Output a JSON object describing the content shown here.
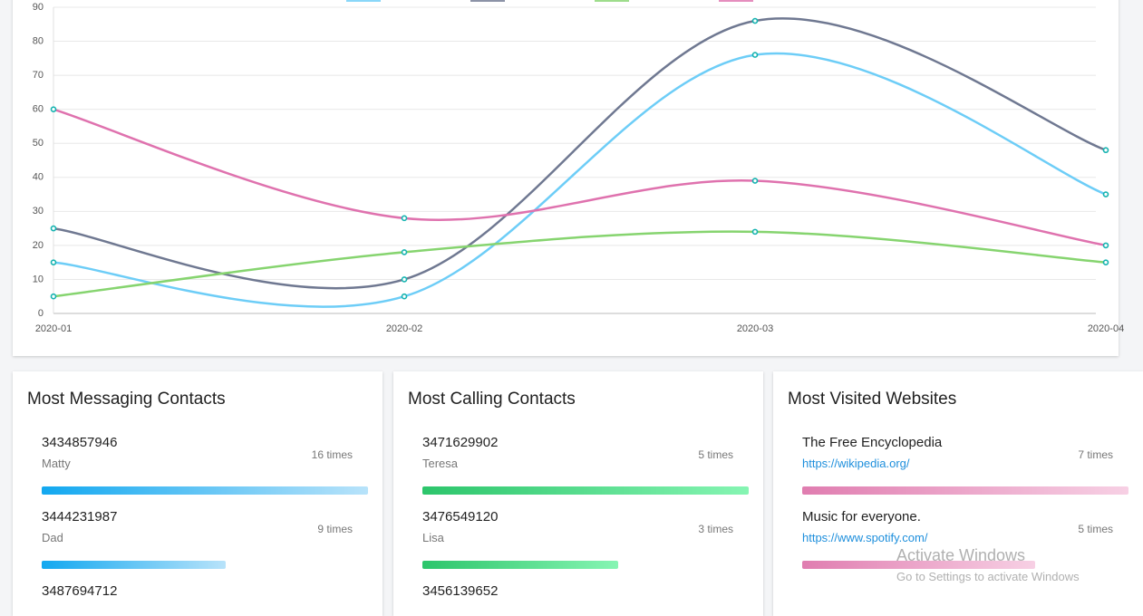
{
  "chart_data": {
    "type": "line",
    "categories": [
      "2020-01",
      "2020-02",
      "2020-03",
      "2020-04"
    ],
    "series": [
      {
        "color": "#6dcdf7",
        "values": [
          15,
          5,
          76,
          35
        ]
      },
      {
        "color": "#6f7891",
        "values": [
          25,
          10,
          86,
          48
        ]
      },
      {
        "color": "#86d46f",
        "values": [
          5,
          18,
          24,
          15
        ]
      },
      {
        "color": "#df72ae",
        "values": [
          60,
          28,
          39,
          20
        ]
      }
    ],
    "marker_color": "#15b3b0",
    "ylim": [
      0,
      90
    ],
    "yticks": [
      0,
      10,
      20,
      30,
      40,
      50,
      60,
      70,
      80,
      90
    ],
    "grid": true
  },
  "cards": [
    {
      "title": "Most Messaging Contacts",
      "colors": [
        "#12a8f0",
        "#b8e3fa"
      ],
      "link": false,
      "items": [
        {
          "primary": "3434857946",
          "secondary": "Matty",
          "count": 16,
          "count_label": "16 times"
        },
        {
          "primary": "3444231987",
          "secondary": "Dad",
          "count": 9,
          "count_label": "9 times"
        },
        {
          "primary": "3487694712"
        }
      ]
    },
    {
      "title": "Most Calling Contacts",
      "colors": [
        "#2cc56b",
        "#86f5b3"
      ],
      "link": false,
      "items": [
        {
          "primary": "3471629902",
          "secondary": "Teresa",
          "count": 5,
          "count_label": "5 times"
        },
        {
          "primary": "3476549120",
          "secondary": "Lisa",
          "count": 3,
          "count_label": "3 times"
        },
        {
          "primary": "3456139652"
        }
      ]
    },
    {
      "title": "Most Visited Websites",
      "colors": [
        "#e07db0",
        "#f7d0e4"
      ],
      "link": true,
      "items": [
        {
          "primary": "The Free Encyclopedia",
          "secondary": "https://wikipedia.org/",
          "count": 7,
          "count_label": "7 times"
        },
        {
          "primary": "Music for everyone.",
          "secondary": "https://www.spotify.com/",
          "count": 5,
          "count_label": "5 times"
        }
      ]
    }
  ],
  "watermark": {
    "title": "Activate Windows",
    "subtitle": "Go to Settings to activate Windows"
  }
}
